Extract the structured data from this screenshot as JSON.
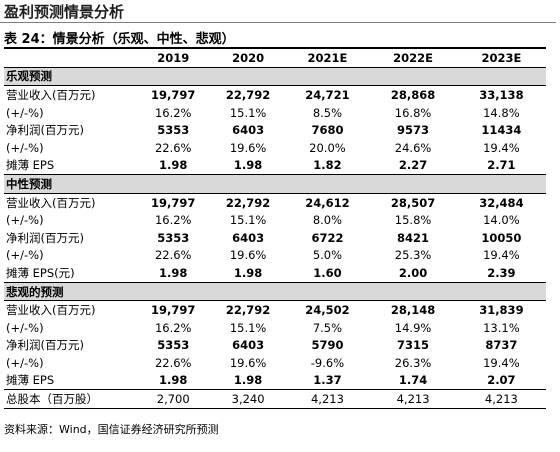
{
  "header": {
    "title": "盈利预测情景分析"
  },
  "table": {
    "caption": "表 24：情景分析（乐观、中性、悲观）",
    "columns": [
      "2019",
      "2020",
      "2021E",
      "2022E",
      "2023E"
    ],
    "sections": [
      {
        "title": "乐观预测",
        "rows": [
          {
            "label": "营业收入(百万元)",
            "values": [
              "19,797",
              "22,792",
              "24,721",
              "28,868",
              "33,138"
            ]
          },
          {
            "label": "(+/-%)",
            "values": [
              "16.2%",
              "15.1%",
              "8.5%",
              "16.8%",
              "14.8%"
            ]
          },
          {
            "label": "净利润(百万元)",
            "values": [
              "5353",
              "6403",
              "7680",
              "9573",
              "11434"
            ]
          },
          {
            "label": "(+/-%)",
            "values": [
              "22.6%",
              "19.6%",
              "20.0%",
              "24.6%",
              "19.4%"
            ]
          },
          {
            "label": "摊薄 EPS",
            "values": [
              "1.98",
              "1.98",
              "1.82",
              "2.27",
              "2.71"
            ]
          }
        ]
      },
      {
        "title": "中性预测",
        "rows": [
          {
            "label": "营业收入(百万元)",
            "values": [
              "19,797",
              "22,792",
              "24,612",
              "28,507",
              "32,484"
            ]
          },
          {
            "label": "(+/-%)",
            "values": [
              "16.2%",
              "15.1%",
              "8.0%",
              "15.8%",
              "14.0%"
            ]
          },
          {
            "label": "净利润(百万元)",
            "values": [
              "5353",
              "6403",
              "6722",
              "8421",
              "10050"
            ]
          },
          {
            "label": "(+/-%)",
            "values": [
              "22.6%",
              "19.6%",
              "5.0%",
              "25.3%",
              "19.4%"
            ]
          },
          {
            "label": "摊薄 EPS(元)",
            "values": [
              "1.98",
              "1.98",
              "1.60",
              "2.00",
              "2.39"
            ]
          }
        ]
      },
      {
        "title": "悲观的预测",
        "rows": [
          {
            "label": "营业收入(百万元)",
            "values": [
              "19,797",
              "22,792",
              "24,502",
              "28,148",
              "31,839"
            ]
          },
          {
            "label": "(+/-%)",
            "values": [
              "16.2%",
              "15.1%",
              "7.5%",
              "14.9%",
              "13.1%"
            ]
          },
          {
            "label": "净利润(百万元)",
            "values": [
              "5353",
              "6403",
              "5790",
              "7315",
              "8737"
            ]
          },
          {
            "label": "(+/-%)",
            "values": [
              "22.6%",
              "19.6%",
              "-9.6%",
              "26.3%",
              "19.4%"
            ]
          },
          {
            "label": "摊薄 EPS",
            "values": [
              "1.98",
              "1.98",
              "1.37",
              "1.74",
              "2.07"
            ]
          }
        ]
      }
    ],
    "footer": {
      "label": "总股本（百万股）",
      "values": [
        "2,700",
        "3,240",
        "4,213",
        "4,213",
        "4,213"
      ]
    }
  },
  "source": "资料来源：Wind，国信证券经济研究所预测"
}
